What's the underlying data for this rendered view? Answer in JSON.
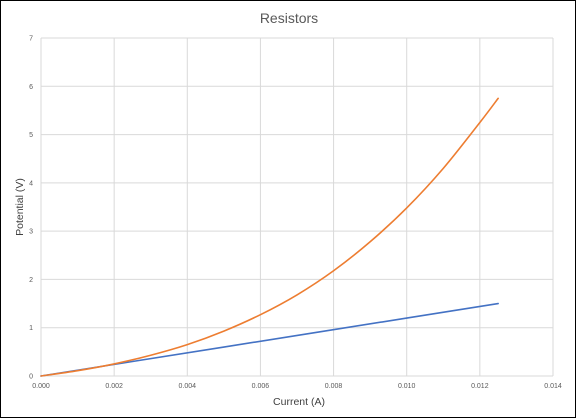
{
  "chart_data": {
    "type": "line",
    "title": "Resistors",
    "xlabel": "Current (A)",
    "ylabel": "Potential (V)",
    "xlim": [
      0,
      0.014
    ],
    "ylim": [
      0,
      7
    ],
    "x_ticks": [
      "0.000",
      "0.002",
      "0.004",
      "0.006",
      "0.008",
      "0.010",
      "0.012",
      "0.014"
    ],
    "y_ticks": [
      "0",
      "1",
      "2",
      "3",
      "4",
      "5",
      "6",
      "7"
    ],
    "grid": true,
    "legend": "none",
    "series": [
      {
        "color": "#4472C4",
        "points": [
          [
            0,
            0
          ],
          [
            0.0025,
            0.3
          ],
          [
            0.005,
            0.6
          ],
          [
            0.0075,
            0.9
          ],
          [
            0.01,
            1.2
          ],
          [
            0.0125,
            1.5
          ]
        ]
      },
      {
        "color": "#ED7D31",
        "points": [
          [
            0,
            0
          ],
          [
            0.001,
            0.11
          ],
          [
            0.002,
            0.25
          ],
          [
            0.003,
            0.43
          ],
          [
            0.004,
            0.65
          ],
          [
            0.005,
            0.93
          ],
          [
            0.006,
            1.27
          ],
          [
            0.007,
            1.68
          ],
          [
            0.008,
            2.18
          ],
          [
            0.009,
            2.78
          ],
          [
            0.01,
            3.48
          ],
          [
            0.011,
            4.3
          ],
          [
            0.012,
            5.25
          ],
          [
            0.0125,
            5.75
          ]
        ]
      }
    ]
  }
}
